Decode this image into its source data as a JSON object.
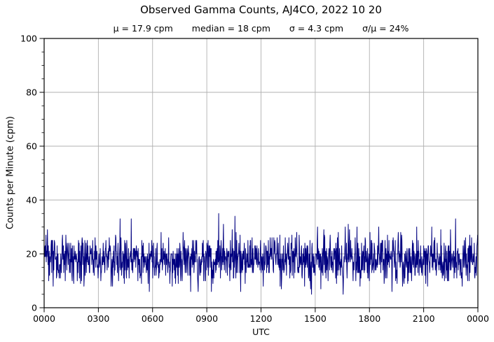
{
  "page": {
    "background_color": "#ffffff",
    "text_color": "#000000"
  },
  "chart_data": {
    "type": "line",
    "title": "Observed Gamma Counts, AJ4CO, 2022 10 20",
    "subtitle_stats": {
      "mean": "μ = 17.9 cpm",
      "median": "median = 18 cpm",
      "sigma": "σ = 4.3 cpm",
      "cv": "σ/μ = 24%"
    },
    "xlabel": "UTC",
    "ylabel": "Counts per Minute (cpm)",
    "ylim": [
      0,
      100
    ],
    "y_major_step": 20,
    "y_minor_step": 5,
    "y_tick_labels": [
      "0",
      "20",
      "40",
      "60",
      "80",
      "100"
    ],
    "x_start_hour": 0,
    "x_end_hour": 24,
    "x_tick_hours": [
      0,
      3,
      6,
      9,
      12,
      15,
      18,
      21,
      24
    ],
    "x_tick_labels": [
      "0000",
      "0300",
      "0600",
      "0900",
      "1200",
      "1500",
      "1800",
      "2100",
      "0000"
    ],
    "grid": true,
    "legend": "none",
    "line_color": "#000080",
    "grid_color": "#b0b0b0",
    "spine_color": "#000000",
    "series": {
      "name": "observed-gamma-counts",
      "n_points": 1440,
      "sample_interval": "1 minute",
      "mean": 17.9,
      "median": 18,
      "sigma": 4.3,
      "min": 5,
      "max": 35,
      "integer_counts": true,
      "seed": 20221020,
      "notable_points": [
        {
          "minute": 349,
          "value": 6
        },
        {
          "minute": 579,
          "value": 35
        },
        {
          "minute": 633,
          "value": 34
        },
        {
          "minute": 884,
          "value": 7
        },
        {
          "minute": 1009,
          "value": 31
        },
        {
          "minute": 1365,
          "value": 33
        }
      ]
    }
  }
}
